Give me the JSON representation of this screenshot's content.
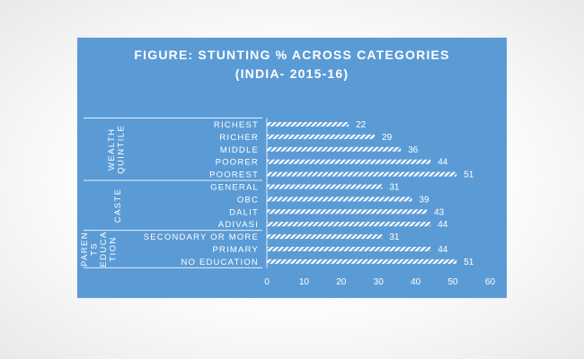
{
  "chart_data": {
    "type": "bar",
    "orientation": "horizontal",
    "title_lines": [
      "FIGURE:  STUNTING % ACROSS CATEGORIES",
      "(INDIA- 2015-16)"
    ],
    "xlim": [
      0,
      60
    ],
    "x_ticks": [
      "0",
      "10",
      "20",
      "30",
      "40",
      "50",
      "60"
    ],
    "grid": false,
    "bar_fill": "white diagonal hatch",
    "colors": {
      "background": "#5b9bd5",
      "bar": "#ffffff",
      "text": "#ffffff"
    },
    "groups": [
      {
        "name": "WEALTH QUINTILE",
        "name_lines": [
          "WEALTH",
          "QUINTILE"
        ],
        "categories": [
          "RICHEST",
          "RICHER",
          "MIDDLE",
          "POORER",
          "POOREST"
        ],
        "values": [
          22,
          29,
          36,
          44,
          51
        ],
        "value_labels": [
          "22",
          "29",
          "36",
          "44",
          "51"
        ]
      },
      {
        "name": "CASTE",
        "name_lines": [
          "CASTE"
        ],
        "categories": [
          "GENERAL",
          "OBC",
          "DALIT",
          "ADIVASI"
        ],
        "values": [
          31,
          39,
          43,
          44
        ],
        "value_labels": [
          "31",
          "39",
          "43",
          "44"
        ]
      },
      {
        "name": "PARENTS EDUCATION",
        "name_lines": [
          "PAREN",
          "TS",
          "EDUCA",
          "TION"
        ],
        "categories": [
          "SECONDARY OR MORE",
          "PRIMARY",
          "NO EDUCATION"
        ],
        "values": [
          31,
          44,
          51
        ],
        "value_labels": [
          "31",
          "44",
          "51"
        ]
      }
    ]
  }
}
